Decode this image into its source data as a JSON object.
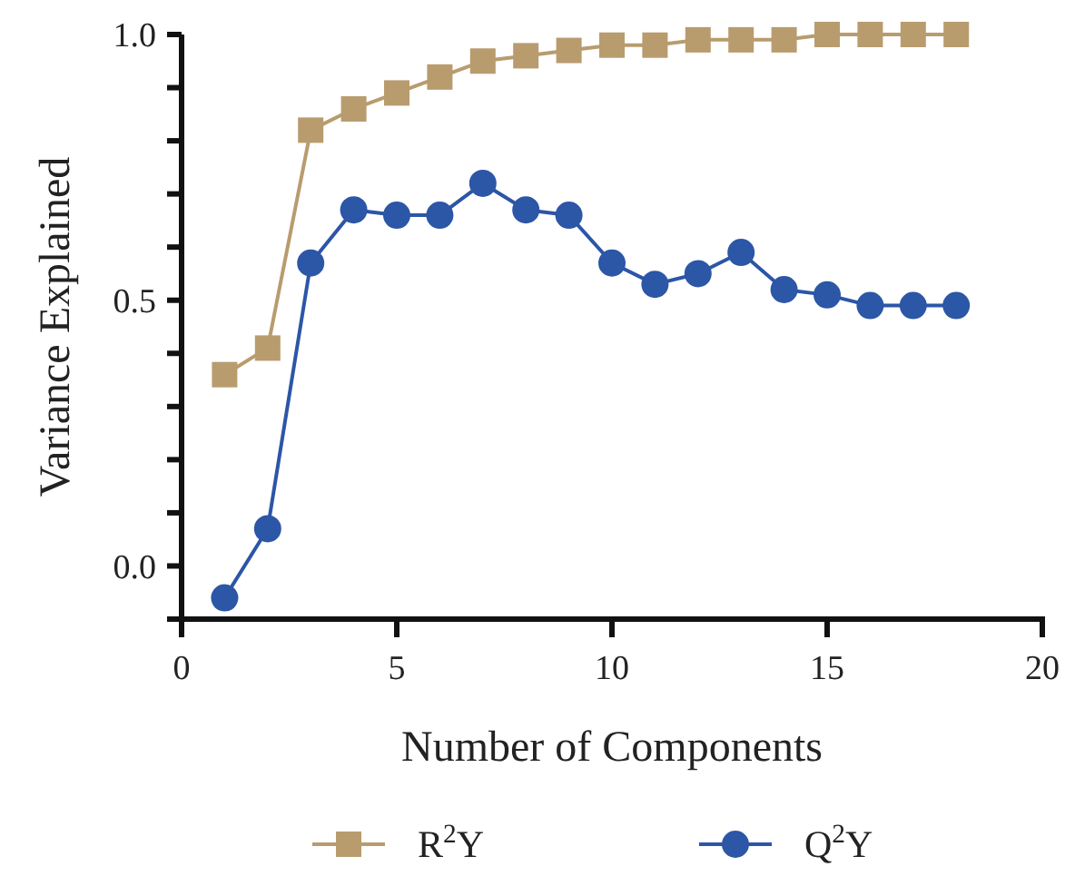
{
  "chart_data": {
    "type": "line",
    "xlabel": "Number of Components",
    "ylabel": "Variance Explained",
    "x": [
      1,
      2,
      3,
      4,
      5,
      6,
      7,
      8,
      9,
      10,
      11,
      12,
      13,
      14,
      15,
      16,
      17,
      18
    ],
    "series": [
      {
        "name": "R$^{2}$Y",
        "color": "#b89c6e",
        "marker": "square",
        "values": [
          0.36,
          0.41,
          0.82,
          0.86,
          0.89,
          0.92,
          0.95,
          0.96,
          0.97,
          0.98,
          0.98,
          0.99,
          0.99,
          0.99,
          1.0,
          1.0,
          1.0,
          1.0
        ]
      },
      {
        "name": "Q$^{2}$Y",
        "color": "#2c56a6",
        "marker": "circle",
        "values": [
          -0.06,
          0.07,
          0.57,
          0.67,
          0.66,
          0.66,
          0.72,
          0.67,
          0.66,
          0.57,
          0.53,
          0.55,
          0.59,
          0.52,
          0.51,
          0.49,
          0.49,
          0.49
        ]
      }
    ],
    "xlim": [
      0,
      20
    ],
    "xticks": [
      0,
      5,
      10,
      15,
      20
    ],
    "ylim": [
      -0.1,
      1.0
    ],
    "yticks": [
      {
        "value": -0.1,
        "label": null
      },
      {
        "value": 0.0,
        "label": "0.0"
      },
      {
        "value": 0.1,
        "label": null
      },
      {
        "value": 0.2,
        "label": null
      },
      {
        "value": 0.3,
        "label": null
      },
      {
        "value": 0.4,
        "label": null
      },
      {
        "value": 0.5,
        "label": "0.5"
      },
      {
        "value": 0.6,
        "label": null
      },
      {
        "value": 0.7,
        "label": null
      },
      {
        "value": 0.8,
        "label": null
      },
      {
        "value": 0.9,
        "label": null
      },
      {
        "value": 1.0,
        "label": "1.0"
      }
    ],
    "grid": false,
    "legend": "bottom",
    "line_style": "solid"
  }
}
